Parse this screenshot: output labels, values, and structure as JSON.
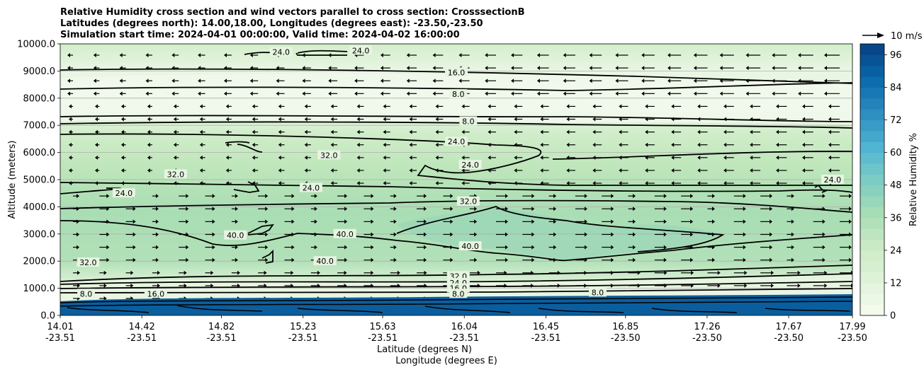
{
  "chart_data": {
    "type": "contour",
    "title_lines": [
      "Relative Humidity cross section and wind vectors parallel to cross section: CrosssectionB",
      "Latitudes (degrees north): 14.00,18.00, Longitudes (degrees east): -23.50,-23.50",
      "Simulation start time: 2024-04-01 00:00:00, Valid time: 2024-04-02 16:00:00"
    ],
    "xlabel_lat": "Latitude (degrees N)",
    "xlabel_lon": "Longitude (degrees E)",
    "ylabel": "Altitude (meters)",
    "colorbar_label": "Relative Humidity %",
    "quiver_key_label": "10 m/s",
    "x_ticks": [
      {
        "lat": "14.01",
        "lon": "-23.51"
      },
      {
        "lat": "14.42",
        "lon": "-23.51"
      },
      {
        "lat": "14.82",
        "lon": "-23.51"
      },
      {
        "lat": "15.23",
        "lon": "-23.51"
      },
      {
        "lat": "15.63",
        "lon": "-23.51"
      },
      {
        "lat": "16.04",
        "lon": "-23.51"
      },
      {
        "lat": "16.45",
        "lon": "-23.51"
      },
      {
        "lat": "16.85",
        "lon": "-23.50"
      },
      {
        "lat": "17.26",
        "lon": "-23.50"
      },
      {
        "lat": "17.67",
        "lon": "-23.50"
      },
      {
        "lat": "17.99",
        "lon": "-23.50"
      }
    ],
    "x_range": [
      14.01,
      17.99
    ],
    "y_ticks": [
      "0.0",
      "1000.0",
      "2000.0",
      "3000.0",
      "4000.0",
      "5000.0",
      "6000.0",
      "7000.0",
      "8000.0",
      "9000.0",
      "10000.0"
    ],
    "y_range": [
      0,
      10000
    ],
    "colorbar_ticks": [
      "0",
      "12",
      "24",
      "36",
      "48",
      "60",
      "72",
      "84",
      "96"
    ],
    "colorbar_range": [
      0,
      100
    ],
    "grid": "horizontal",
    "contour_labels": [
      {
        "text": "24.0",
        "lat": 15.12,
        "alt": 9700
      },
      {
        "text": "24.0",
        "lat": 15.52,
        "alt": 9750
      },
      {
        "text": "16.0",
        "lat": 16.0,
        "alt": 8950
      },
      {
        "text": "8.0",
        "lat": 16.01,
        "alt": 8150
      },
      {
        "text": "8.0",
        "lat": 16.06,
        "alt": 7150
      },
      {
        "text": "24.0",
        "lat": 16.0,
        "alt": 6400
      },
      {
        "text": "24.0",
        "lat": 16.07,
        "alt": 5550
      },
      {
        "text": "32.0",
        "lat": 15.36,
        "alt": 5900
      },
      {
        "text": "32.0",
        "lat": 14.59,
        "alt": 5200
      },
      {
        "text": "24.0",
        "lat": 14.33,
        "alt": 4500
      },
      {
        "text": "24.0",
        "lat": 15.27,
        "alt": 4700
      },
      {
        "text": "24.0",
        "lat": 17.89,
        "alt": 5000
      },
      {
        "text": "32.0",
        "lat": 16.06,
        "alt": 4200
      },
      {
        "text": "40.0",
        "lat": 14.89,
        "alt": 2950
      },
      {
        "text": "40.0",
        "lat": 15.44,
        "alt": 3000
      },
      {
        "text": "40.0",
        "lat": 15.34,
        "alt": 2000
      },
      {
        "text": "40.0",
        "lat": 16.07,
        "alt": 2550
      },
      {
        "text": "32.0",
        "lat": 14.15,
        "alt": 1950
      },
      {
        "text": "32.0",
        "lat": 16.01,
        "alt": 1450
      },
      {
        "text": "24.0",
        "lat": 16.01,
        "alt": 1200
      },
      {
        "text": "16.0",
        "lat": 16.01,
        "alt": 1000
      },
      {
        "text": "8.0",
        "lat": 16.01,
        "alt": 800
      },
      {
        "text": "8.0",
        "lat": 16.71,
        "alt": 850
      },
      {
        "text": "8.0",
        "lat": 14.14,
        "alt": 800
      },
      {
        "text": "16.0",
        "lat": 14.49,
        "alt": 800
      }
    ],
    "colors": {
      "colormap": [
        "#f7fcf0",
        "#e0f3db",
        "#ccebc5",
        "#a8ddb5",
        "#7bccc4",
        "#4eb3d3",
        "#2b8cbe",
        "#0868ac",
        "#084081"
      ]
    }
  }
}
